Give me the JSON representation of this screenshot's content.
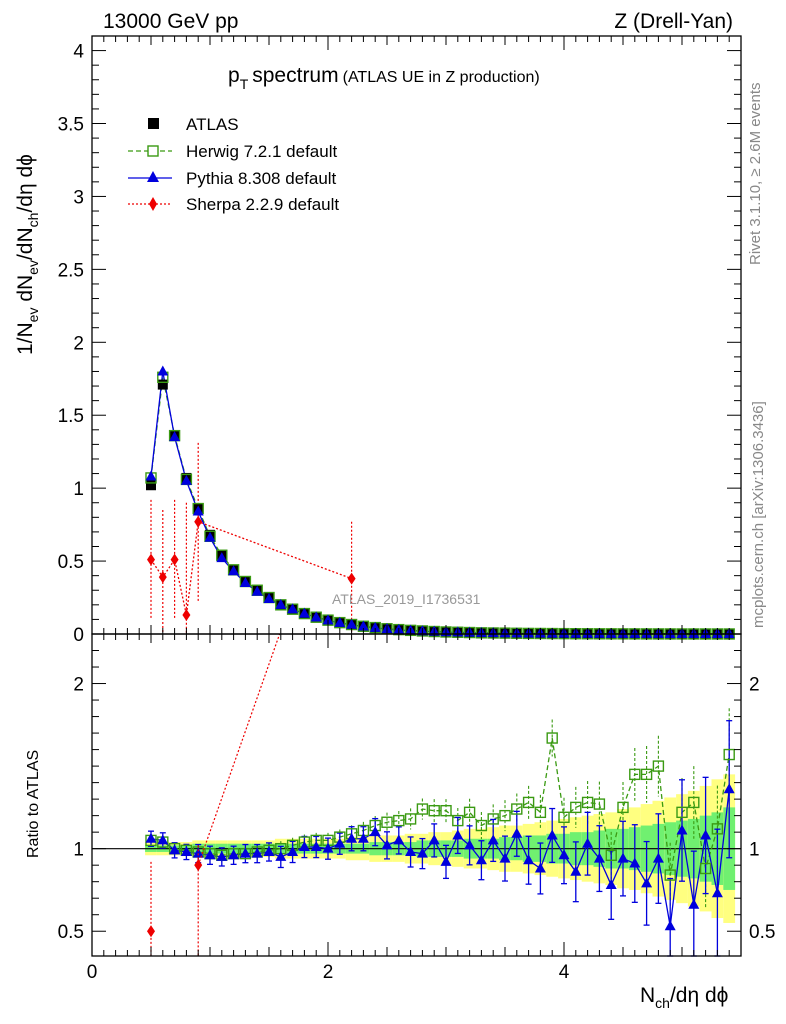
{
  "header": {
    "left": "13000 GeV pp",
    "right": "Z (Drell-Yan)"
  },
  "side_text": {
    "rivet": "Rivet 3.1.10, ≥ 2.6M events",
    "mcplots": "mcplots.cern.ch [arXiv:1306.3436]"
  },
  "watermark": "ATLAS_2019_I1736531",
  "colors": {
    "atlas": "#000000",
    "herwig": "#3a9a12",
    "pythia": "#0000dd",
    "sherpa": "#ee0000",
    "band_outer": "#ffff80",
    "band_inner": "#70f070"
  },
  "chart_data": [
    {
      "type": "line",
      "panel": "main",
      "title_main": "p",
      "title_sub": "T",
      "title_rest": "spectrum",
      "title_paren": "(ATLAS UE in Z production)",
      "xlabel": "N_ch/dη dϕ",
      "ylabel": "1/N_ev dN_ev/dN_ch/dη dϕ",
      "xlim": [
        0,
        5.5
      ],
      "ylim": [
        0,
        4.1
      ],
      "x_ticks": [
        "0",
        "2",
        "4"
      ],
      "y_ticks": [
        "0",
        "0.5",
        "1",
        "1.5",
        "2",
        "2.5",
        "3",
        "3.5",
        "4"
      ],
      "x": [
        0.5,
        0.6,
        0.7,
        0.8,
        0.9,
        1.0,
        1.1,
        1.2,
        1.3,
        1.4,
        1.5,
        1.6,
        1.7,
        1.8,
        1.9,
        2.0,
        2.1,
        2.2,
        2.3,
        2.4,
        2.5,
        2.6,
        2.7,
        2.8,
        2.9,
        3.0,
        3.1,
        3.2,
        3.3,
        3.4,
        3.5,
        3.6,
        3.7,
        3.8,
        3.9,
        4.0,
        4.1,
        4.2,
        4.3,
        4.4,
        4.5,
        4.6,
        4.7,
        4.8,
        4.9,
        5.0,
        5.1,
        5.2,
        5.3,
        5.4
      ],
      "series": [
        {
          "name": "ATLAS",
          "style": "data",
          "values": [
            1.02,
            1.71,
            1.36,
            1.07,
            0.86,
            0.68,
            0.54,
            0.44,
            0.36,
            0.3,
            0.25,
            0.2,
            0.17,
            0.14,
            0.115,
            0.095,
            0.078,
            0.065,
            0.053,
            0.044,
            0.036,
            0.03,
            0.025,
            0.021,
            0.017,
            0.014,
            0.012,
            0.01,
            0.008,
            0.007,
            0.006,
            0.005,
            0.004,
            0.0035,
            0.003,
            0.0025,
            0.002,
            0.0017,
            0.0014,
            0.0012,
            0.001,
            0.0008,
            0.0007,
            0.0006,
            0.0005,
            0.0004,
            0.0003,
            0.00025,
            0.0002,
            0.00015
          ]
        },
        {
          "name": "Herwig 7.2.1 default",
          "style": "open-square-dashed",
          "values": [
            1.07,
            1.76,
            1.36,
            1.06,
            0.86,
            0.67,
            0.54,
            0.44,
            0.36,
            0.3,
            0.25,
            0.2,
            0.17,
            0.14,
            0.115,
            0.095,
            0.078,
            0.065,
            0.053,
            0.044,
            0.036,
            0.03,
            0.025,
            0.021,
            0.017,
            0.014,
            0.012,
            0.01,
            0.008,
            0.007,
            0.006,
            0.005,
            0.004,
            0.0035,
            0.003,
            0.0025,
            0.002,
            0.0017,
            0.0014,
            0.0012,
            0.001,
            0.0008,
            0.0007,
            0.0006,
            0.0005,
            0.0004,
            0.0003,
            0.00025,
            0.0002,
            0.00015
          ]
        },
        {
          "name": "Pythia 8.308 default",
          "style": "triangle-solid",
          "values": [
            1.08,
            1.8,
            1.35,
            1.05,
            0.84,
            0.66,
            0.52,
            0.43,
            0.35,
            0.29,
            0.24,
            0.2,
            0.17,
            0.14,
            0.114,
            0.093,
            0.076,
            0.063,
            0.051,
            0.042,
            0.034,
            0.028,
            0.023,
            0.019,
            0.016,
            0.013,
            0.011,
            0.009,
            0.0075,
            0.0065,
            0.0055,
            0.0045,
            0.0038,
            0.0032,
            0.0027,
            0.0022,
            0.0018,
            0.0015,
            0.0013,
            0.0011,
            0.0009,
            0.0007,
            0.0006,
            0.0005,
            0.0004,
            0.00035,
            0.0003,
            0.00025,
            0.0002,
            0.00015
          ]
        },
        {
          "name": "Sherpa 2.2.9 default",
          "style": "diamond-dotted",
          "x": [
            0.5,
            0.6,
            0.7,
            0.8,
            0.9,
            2.2
          ],
          "values": [
            0.51,
            0.39,
            0.51,
            0.13,
            0.77,
            0.38
          ],
          "err_hi": [
            0.92,
            0.85,
            0.92,
            0.9,
            1.31,
            0.77
          ],
          "err_lo": [
            0.1,
            0.0,
            0.1,
            0.0,
            0.22,
            0.0
          ]
        }
      ]
    },
    {
      "type": "line",
      "panel": "ratio",
      "ylabel": "Ratio to ATLAS",
      "xlim": [
        0,
        5.5
      ],
      "ylim": [
        0.35,
        2.3
      ],
      "y_ticks": [
        "0.5",
        "1",
        "2"
      ],
      "x": [
        0.5,
        0.6,
        0.7,
        0.8,
        0.9,
        1.0,
        1.1,
        1.2,
        1.3,
        1.4,
        1.5,
        1.6,
        1.7,
        1.8,
        1.9,
        2.0,
        2.1,
        2.2,
        2.3,
        2.4,
        2.5,
        2.6,
        2.7,
        2.8,
        2.9,
        3.0,
        3.1,
        3.2,
        3.3,
        3.4,
        3.5,
        3.6,
        3.7,
        3.8,
        3.9,
        4.0,
        4.1,
        4.2,
        4.3,
        4.4,
        4.5,
        4.6,
        4.7,
        4.8,
        4.9,
        5.0,
        5.1,
        5.2,
        5.3,
        5.4
      ],
      "band_inner": [
        0.02,
        0.02,
        0.02,
        0.02,
        0.03,
        0.03,
        0.03,
        0.03,
        0.03,
        0.03,
        0.03,
        0.03,
        0.03,
        0.03,
        0.03,
        0.03,
        0.03,
        0.03,
        0.03,
        0.04,
        0.04,
        0.04,
        0.04,
        0.05,
        0.05,
        0.05,
        0.05,
        0.06,
        0.06,
        0.06,
        0.07,
        0.07,
        0.08,
        0.08,
        0.09,
        0.09,
        0.1,
        0.1,
        0.11,
        0.12,
        0.12,
        0.13,
        0.14,
        0.15,
        0.16,
        0.17,
        0.18,
        0.2,
        0.22,
        0.25
      ],
      "band_outer": [
        0.04,
        0.04,
        0.04,
        0.04,
        0.05,
        0.05,
        0.05,
        0.05,
        0.05,
        0.05,
        0.05,
        0.06,
        0.06,
        0.06,
        0.06,
        0.06,
        0.06,
        0.07,
        0.07,
        0.08,
        0.08,
        0.08,
        0.09,
        0.09,
        0.1,
        0.1,
        0.11,
        0.12,
        0.12,
        0.13,
        0.14,
        0.14,
        0.15,
        0.16,
        0.17,
        0.18,
        0.19,
        0.2,
        0.21,
        0.22,
        0.24,
        0.25,
        0.27,
        0.29,
        0.31,
        0.33,
        0.35,
        0.38,
        0.42,
        0.45
      ],
      "series": [
        {
          "name": "Herwig 7.2.1 default",
          "values": [
            1.05,
            1.04,
            1.0,
            0.99,
            0.98,
            0.97,
            0.96,
            0.97,
            0.97,
            0.98,
            0.99,
            1.0,
            1.02,
            1.04,
            1.05,
            1.05,
            1.07,
            1.09,
            1.11,
            1.14,
            1.16,
            1.17,
            1.18,
            1.24,
            1.23,
            1.23,
            1.17,
            1.22,
            1.14,
            1.18,
            1.2,
            1.24,
            1.28,
            1.22,
            1.67,
            1.19,
            1.25,
            1.28,
            1.27,
            0.96,
            1.25,
            1.45,
            1.45,
            1.5,
            0.84,
            1.22,
            1.28,
            0.88,
            1.12,
            1.57
          ]
        },
        {
          "name": "Pythia 8.308 default",
          "values": [
            1.06,
            1.05,
            0.99,
            0.98,
            0.97,
            0.96,
            0.95,
            0.96,
            0.97,
            0.97,
            0.98,
            0.95,
            0.98,
            1.01,
            1.01,
            1.0,
            1.03,
            1.06,
            1.06,
            1.1,
            1.02,
            1.05,
            0.98,
            0.97,
            1.05,
            0.92,
            1.08,
            1.02,
            0.93,
            1.05,
            0.94,
            1.09,
            0.93,
            0.88,
            1.08,
            0.96,
            0.86,
            1.03,
            0.94,
            0.78,
            0.94,
            0.91,
            0.79,
            0.94,
            0.53,
            1.11,
            0.66,
            1.08,
            0.73,
            1.36
          ]
        },
        {
          "name": "Sherpa 2.2.9 default",
          "x": [
            0.5,
            0.9
          ],
          "values": [
            0.5,
            0.9
          ]
        }
      ]
    }
  ]
}
